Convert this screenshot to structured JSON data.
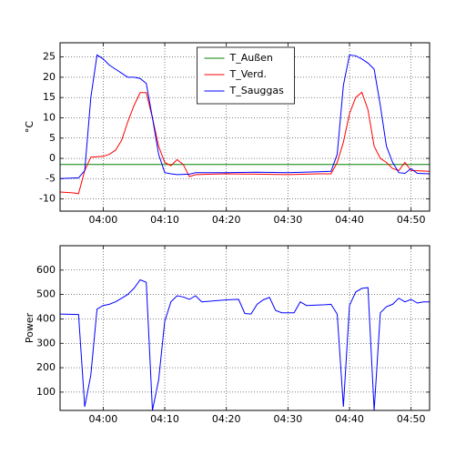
{
  "chart_data": [
    {
      "type": "line",
      "ylabel": "°C",
      "legend": "upper center",
      "grid": true,
      "xlim": [
        "03:53",
        "04:53"
      ],
      "xticks": [
        "04:00",
        "04:10",
        "04:20",
        "04:30",
        "04:40",
        "04:50"
      ],
      "ylim": [
        -13,
        28.5
      ],
      "yticks": [
        -10,
        -5,
        0,
        5,
        10,
        15,
        20,
        25
      ],
      "series": [
        {
          "name": "T_Außen",
          "color": "#008000",
          "x": [
            "03:53",
            "04:53"
          ],
          "values": [
            -1.5,
            -1.5
          ]
        },
        {
          "name": "T_Verd.",
          "color": "#ff0000",
          "x": [
            "03:53",
            "03:55",
            "03:56",
            "03:57",
            "03:58",
            "04:00",
            "04:01",
            "04:02",
            "04:03",
            "04:04",
            "04:05",
            "04:06",
            "04:07",
            "04:08",
            "04:09",
            "04:10",
            "04:11",
            "04:12",
            "04:13",
            "04:14",
            "04:15",
            "04:20",
            "04:25",
            "04:30",
            "04:35",
            "04:37",
            "04:38",
            "04:39",
            "04:40",
            "04:41",
            "04:42",
            "04:43",
            "04:44",
            "04:45",
            "04:46",
            "04:47",
            "04:48",
            "04:49",
            "04:50",
            "04:53"
          ],
          "values": [
            -8.3,
            -8.5,
            -8.7,
            -3,
            0.3,
            0.5,
            1,
            2,
            4.5,
            9,
            13,
            16.2,
            16.2,
            10,
            3,
            -1,
            -1.8,
            -0.3,
            -1.5,
            -4.5,
            -4,
            -3.8,
            -3.9,
            -4,
            -3.8,
            -3.8,
            -1,
            4,
            11,
            15,
            16.3,
            12,
            3,
            0,
            -1,
            -2.5,
            -3,
            -1,
            -3,
            -3.2
          ]
        },
        {
          "name": "T_Sauggas",
          "color": "#0000ff",
          "x": [
            "03:53",
            "03:56",
            "03:57",
            "03:58",
            "03:59",
            "04:00",
            "04:01",
            "04:02",
            "04:03",
            "04:04",
            "04:05",
            "04:06",
            "04:07",
            "04:08",
            "04:09",
            "04:10",
            "04:11",
            "04:12",
            "04:14",
            "04:15",
            "04:20",
            "04:25",
            "04:30",
            "04:35",
            "04:37",
            "04:38",
            "04:39",
            "04:40",
            "04:41",
            "04:42",
            "04:43",
            "04:44",
            "04:45",
            "04:46",
            "04:47",
            "04:48",
            "04:49",
            "04:50",
            "04:51",
            "04:53"
          ],
          "values": [
            -5,
            -4.8,
            -3,
            15,
            25.5,
            24.5,
            23,
            22,
            21,
            20,
            20,
            19.7,
            18.5,
            10,
            1,
            -3.5,
            -3.8,
            -4,
            -3.9,
            -3.5,
            -3.5,
            -3.4,
            -3.5,
            -3.3,
            -3.2,
            1,
            18,
            25.5,
            25.3,
            24.5,
            23.5,
            22,
            13,
            3,
            -1,
            -3.5,
            -3.7,
            -2.5,
            -3.7,
            -3.8
          ]
        }
      ]
    },
    {
      "type": "line",
      "ylabel": "Power",
      "grid": true,
      "xlim": [
        "03:53",
        "04:53"
      ],
      "xticks": [
        "04:00",
        "04:10",
        "04:20",
        "04:30",
        "04:40",
        "04:50"
      ],
      "ylim": [
        25,
        700
      ],
      "yticks": [
        100,
        200,
        300,
        400,
        500,
        600
      ],
      "series": [
        {
          "color": "#0000ff",
          "x": [
            "03:53",
            "03:56",
            "03:57",
            "03:58",
            "03:59",
            "04:00",
            "04:01",
            "04:02",
            "04:03",
            "04:04",
            "04:05",
            "04:06",
            "04:07",
            "04:08",
            "04:09",
            "04:10",
            "04:11",
            "04:12",
            "04:13",
            "04:14",
            "04:15",
            "04:16",
            "04:20",
            "04:22",
            "04:23",
            "04:24",
            "04:25",
            "04:26",
            "04:27",
            "04:28",
            "04:29",
            "04:31",
            "04:32",
            "04:33",
            "04:36",
            "04:37",
            "04:38",
            "04:39",
            "04:40",
            "04:41",
            "04:42",
            "04:43",
            "04:44",
            "04:45",
            "04:46",
            "04:47",
            "04:48",
            "04:49",
            "04:50",
            "04:51",
            "04:52",
            "04:53"
          ],
          "values": [
            420,
            418,
            40,
            170,
            440,
            455,
            460,
            470,
            485,
            500,
            525,
            560,
            550,
            25,
            150,
            390,
            470,
            495,
            490,
            480,
            495,
            470,
            478,
            480,
            422,
            420,
            460,
            478,
            488,
            435,
            425,
            425,
            470,
            455,
            458,
            460,
            420,
            40,
            455,
            510,
            525,
            528,
            25,
            425,
            450,
            460,
            485,
            470,
            480,
            465,
            470,
            470
          ]
        }
      ]
    }
  ]
}
